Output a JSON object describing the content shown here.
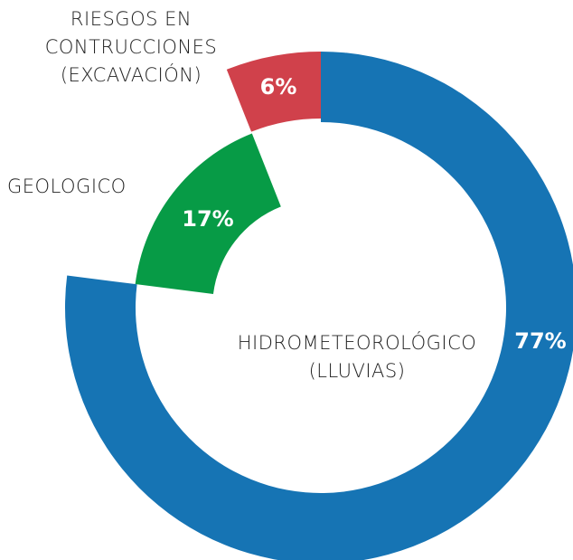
{
  "chart_data": {
    "type": "pie",
    "categories": [
      "HIDROMETEOROLÓGICO\n(LLUVIAS)",
      "GEOLOGICO",
      "RIESGOS EN\nCONTRUCCIONES\n(EXCAVACIÓN)"
    ],
    "values": [
      77,
      17,
      6
    ],
    "value_labels": [
      "77%",
      "17%",
      "6%"
    ],
    "colors": [
      "#1674b4",
      "#079b46",
      "#d0414b"
    ]
  }
}
